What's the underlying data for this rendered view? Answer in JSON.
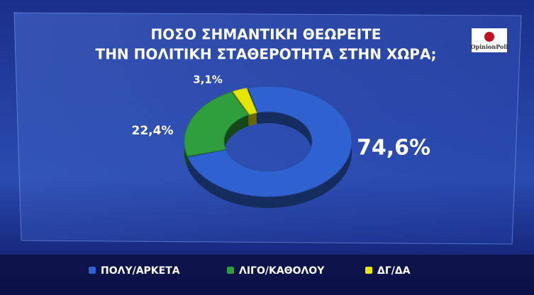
{
  "chart_data": {
    "type": "donut",
    "title": [
      "ΠΟΣΟ ΣΗΜΑΝΤΙΚΗ ΘΕΩΡΕΙΤΕ",
      "ΤΗΝ ΠΟΛΙΤΙΚΗ ΣΤΑΘΕΡΟΤΗΤΑ ΣΤΗΝ ΧΩΡΑ;"
    ],
    "logo": "OpinionPoll",
    "categories": [
      "ΠΟΛΥ/ΑΡΚΕΤΑ",
      "ΛΙΓΟ/ΚΑΘΟΛΟΥ",
      "ΔΓ/ΔΑ"
    ],
    "values": [
      74.6,
      22.4,
      3.1
    ],
    "value_labels": [
      "74,6%",
      "22,4%",
      "3,1%"
    ],
    "colors": [
      "#2f62d0",
      "#2f9e3c",
      "#e6e600"
    ],
    "legend": "bottom"
  }
}
